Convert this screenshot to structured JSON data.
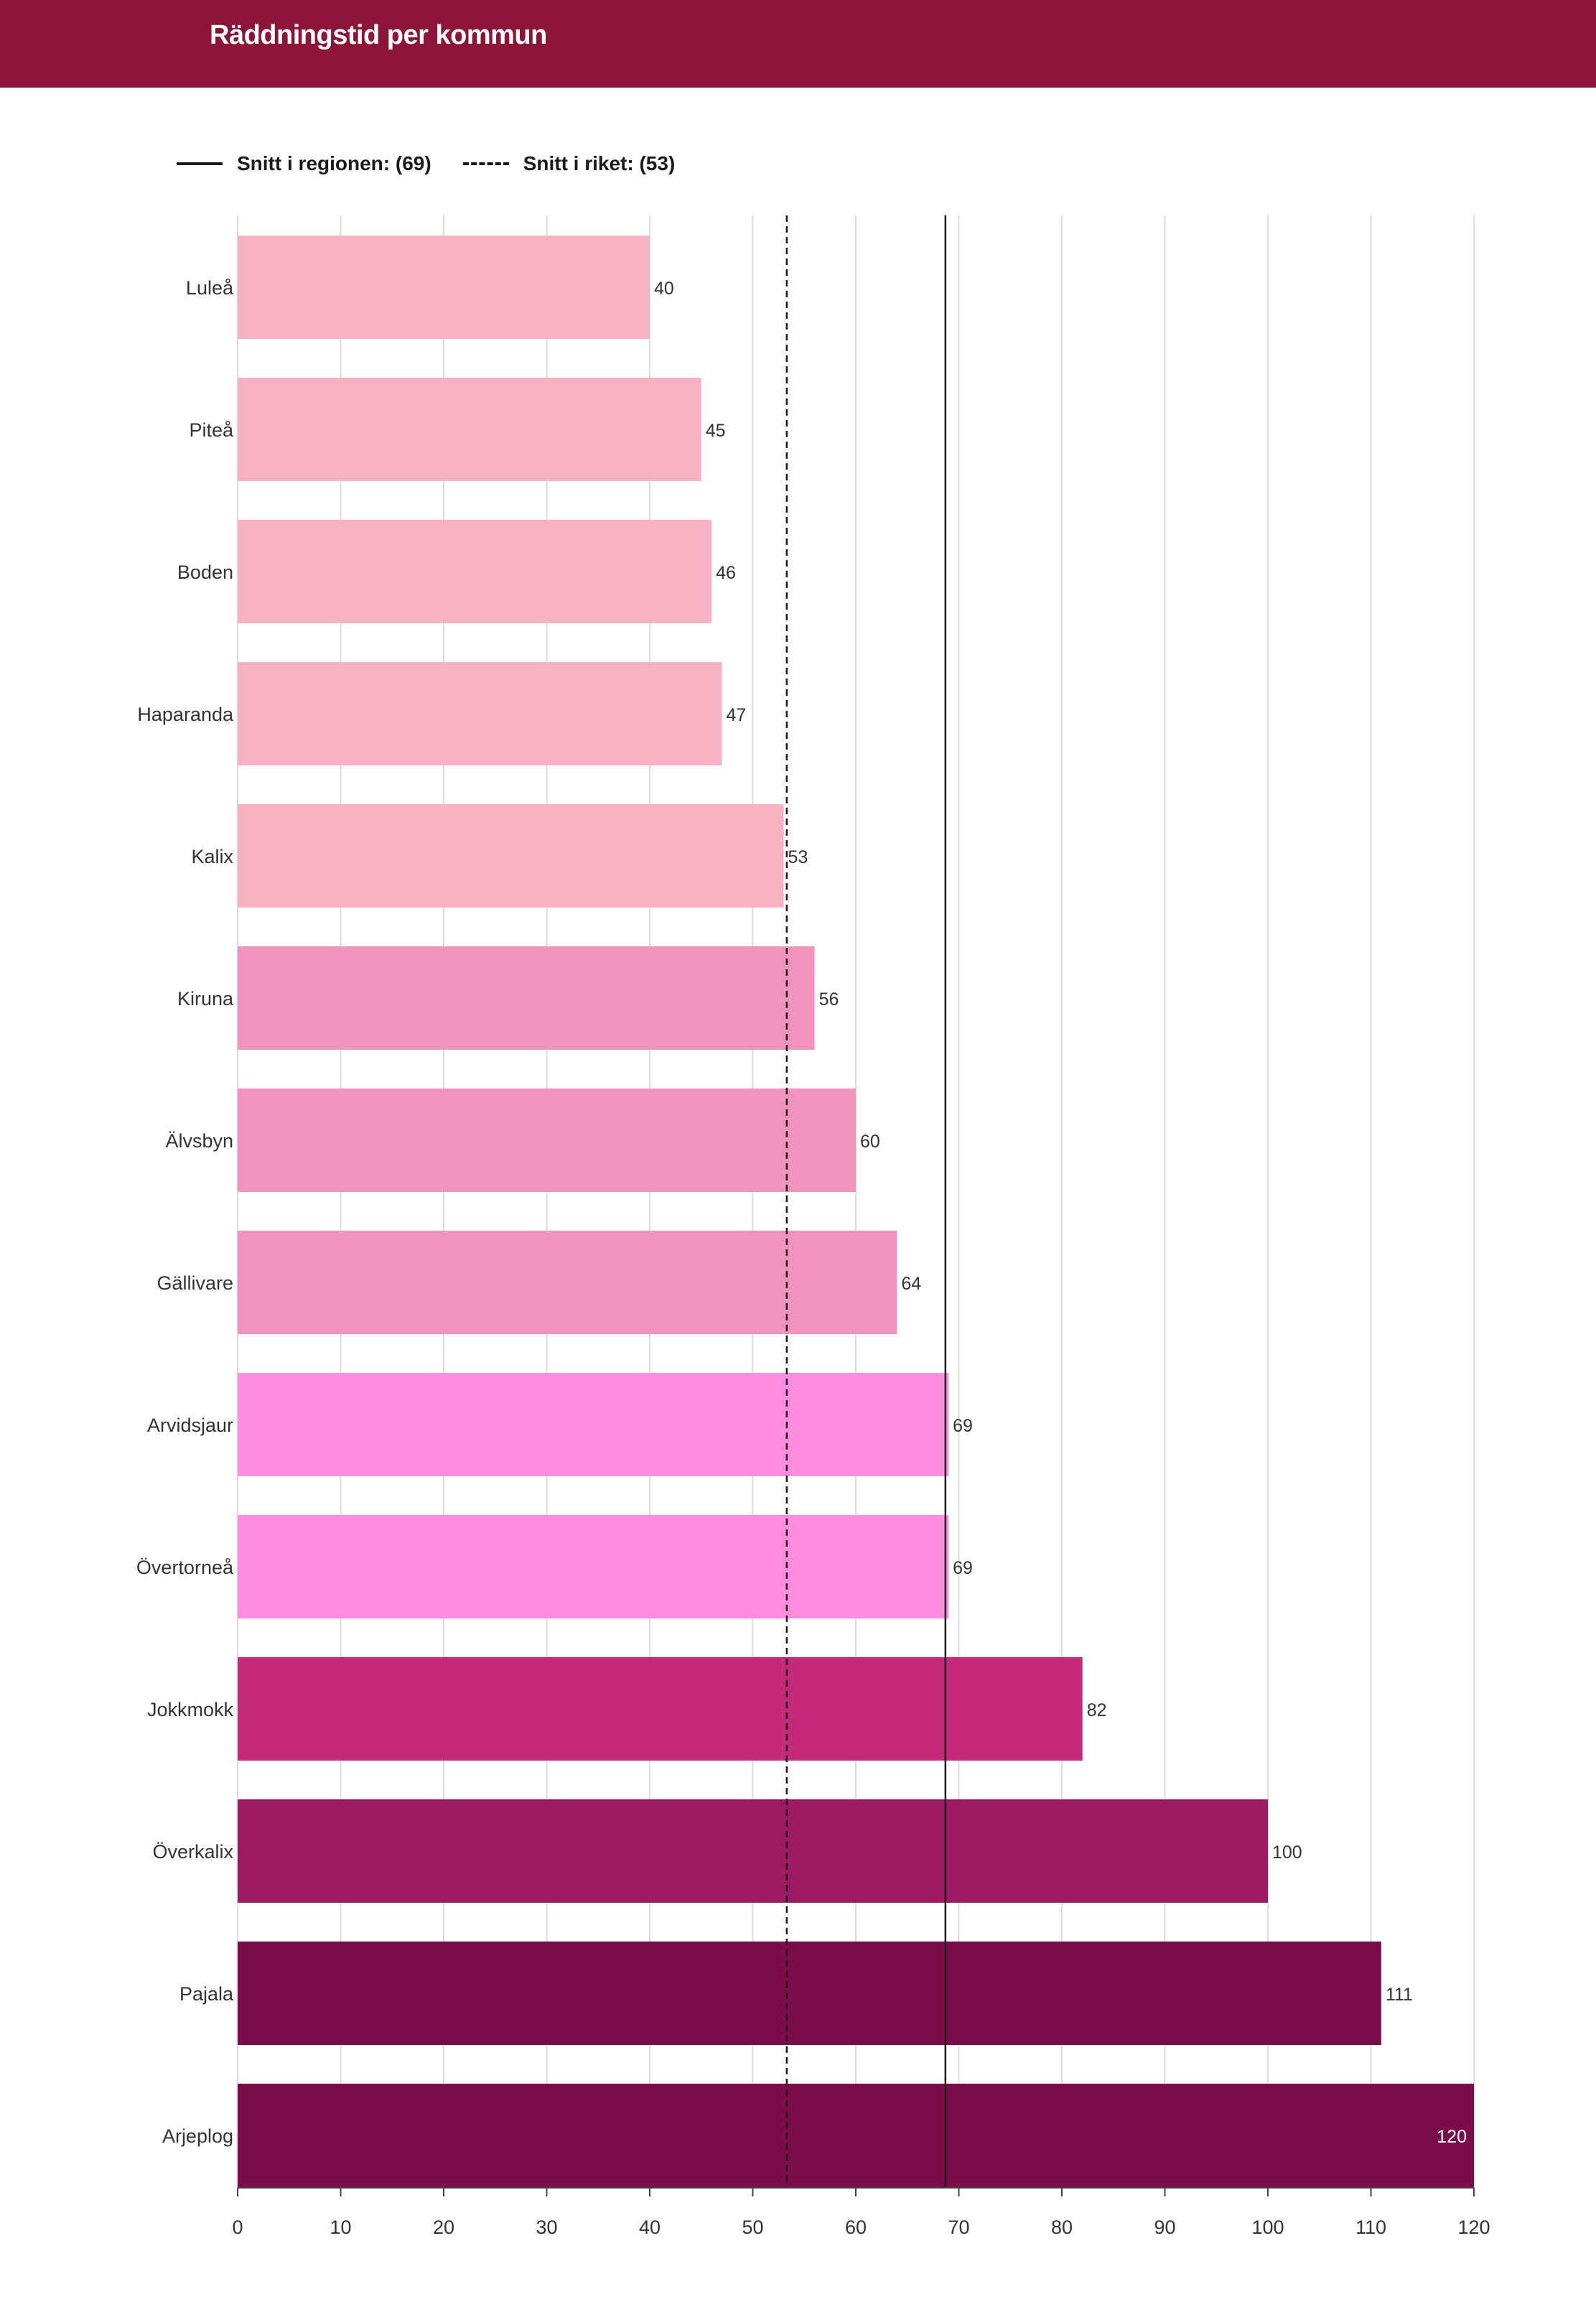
{
  "header": {
    "title": "Räddningstid per kommun"
  },
  "legend": {
    "region_label": "Snitt i regionen: (69)",
    "nation_label": "Snitt i riket: (53)"
  },
  "colors": {
    "header_bg": "#8c1439",
    "grid": "#dcdcdc",
    "axis": "#444444",
    "reference_line": "#1a1a1a"
  },
  "chart_data": {
    "type": "bar",
    "orientation": "horizontal",
    "title": "Räddningstid per kommun",
    "xlabel": "",
    "ylabel": "",
    "xlim": [
      0,
      120
    ],
    "x_ticks": [
      0,
      10,
      20,
      30,
      40,
      50,
      60,
      70,
      80,
      90,
      100,
      110,
      120
    ],
    "grid": true,
    "legend_position": "top-left",
    "categories": [
      "Luleå",
      "Piteå",
      "Boden",
      "Haparanda",
      "Kalix",
      "Kiruna",
      "Älvsbyn",
      "Gällivare",
      "Arvidsjaur",
      "Övertorneå",
      "Jokkmokk",
      "Överkalix",
      "Pajala",
      "Arjeplog"
    ],
    "values": [
      40,
      45,
      46,
      47,
      53,
      56,
      60,
      64,
      69,
      69,
      82,
      100,
      111,
      120
    ],
    "value_labels": [
      "40",
      "45",
      "46",
      "47",
      "53",
      "56",
      "60",
      "64",
      "69",
      "69",
      "82",
      "100",
      "111",
      "120"
    ],
    "bar_colors": [
      "#f7b3c4",
      "#f7b3c4",
      "#f7b3c4",
      "#f7b3c4",
      "#f7b3c4",
      "#f093bd",
      "#f093bd",
      "#f093bd",
      "#fe8ddf",
      "#fe8ddf",
      "#c4297a",
      "#9c1b62",
      "#7b0c4a",
      "#7b0c4a"
    ],
    "reference_lines": [
      {
        "name": "Snitt i regionen",
        "value": 68.7,
        "style": "solid"
      },
      {
        "name": "Snitt i riket",
        "value": 53.3,
        "style": "dashed"
      }
    ]
  }
}
